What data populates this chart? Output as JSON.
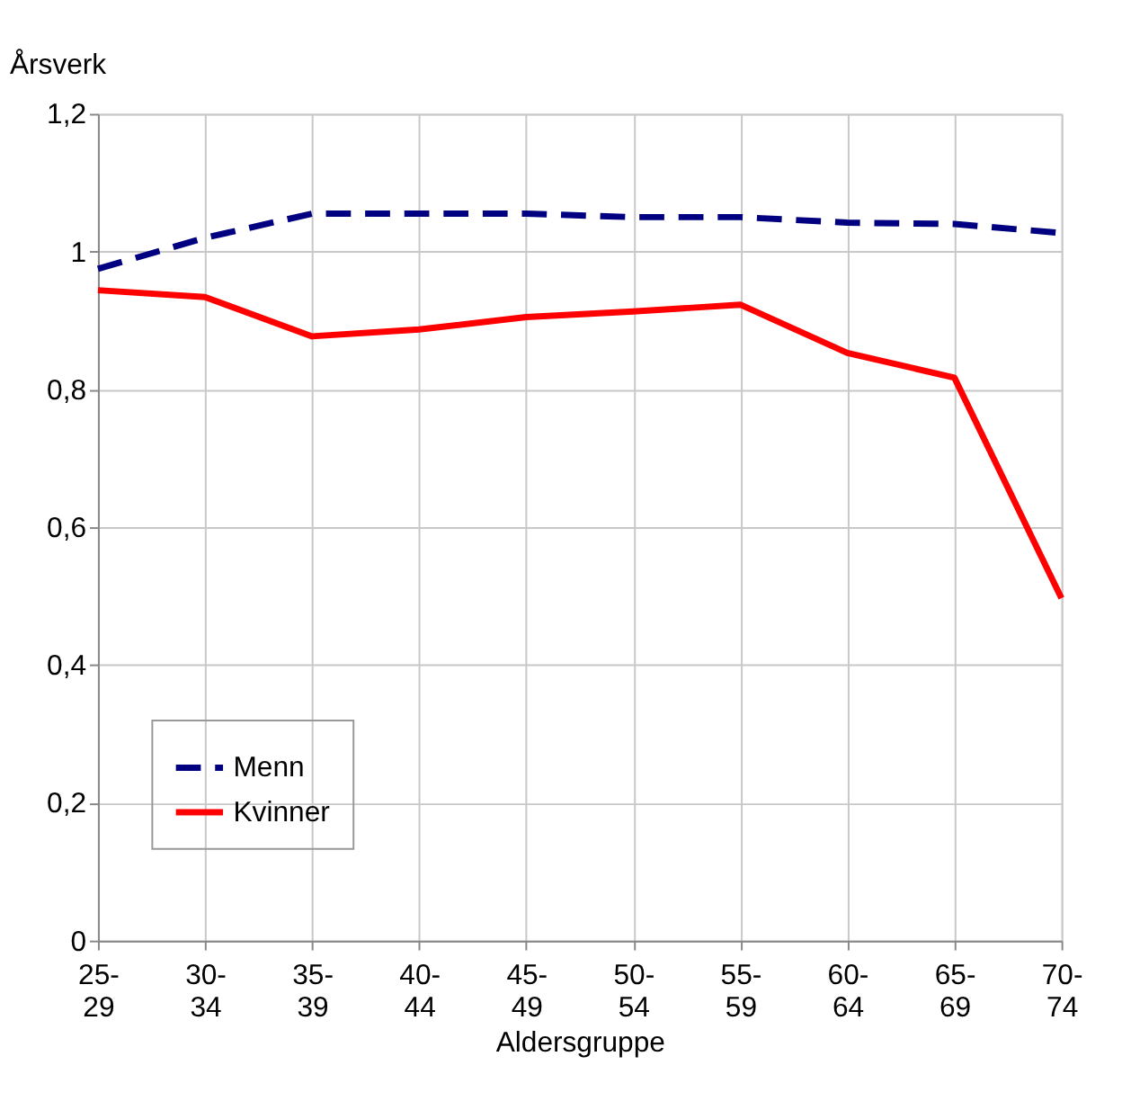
{
  "chart_data": {
    "type": "line",
    "ylabel": "Årsverk",
    "xlabel": "Aldersgruppe",
    "categories": [
      "25-\n29",
      "30-\n34",
      "35-\n39",
      "40-\n44",
      "45-\n49",
      "50-\n54",
      "55-\n59",
      "60-\n64",
      "65-\n69",
      "70-\n74"
    ],
    "series": [
      {
        "name": "Menn",
        "color": "#000080",
        "line_style": "dashed",
        "values": [
          0.975,
          1.02,
          1.055,
          1.055,
          1.055,
          1.05,
          1.05,
          1.042,
          1.04,
          1.027
        ]
      },
      {
        "name": "Kvinner",
        "color": "#ff0000",
        "line_style": "solid",
        "values": [
          0.944,
          0.934,
          0.877,
          0.887,
          0.905,
          0.913,
          0.923,
          0.853,
          0.817,
          0.497
        ]
      }
    ],
    "ylim": [
      0,
      1.2
    ],
    "yticks": [
      0,
      {
        "value": 0.2,
        "label": "0,2"
      },
      {
        "value": 0.4,
        "label": "0,4"
      },
      {
        "value": 0.6,
        "label": "0,6"
      },
      {
        "value": 0.8,
        "label": "0,8"
      },
      1,
      {
        "value": 1.2,
        "label": "1,2"
      }
    ],
    "grid": true,
    "legend": "bottom left",
    "marker": "none"
  }
}
